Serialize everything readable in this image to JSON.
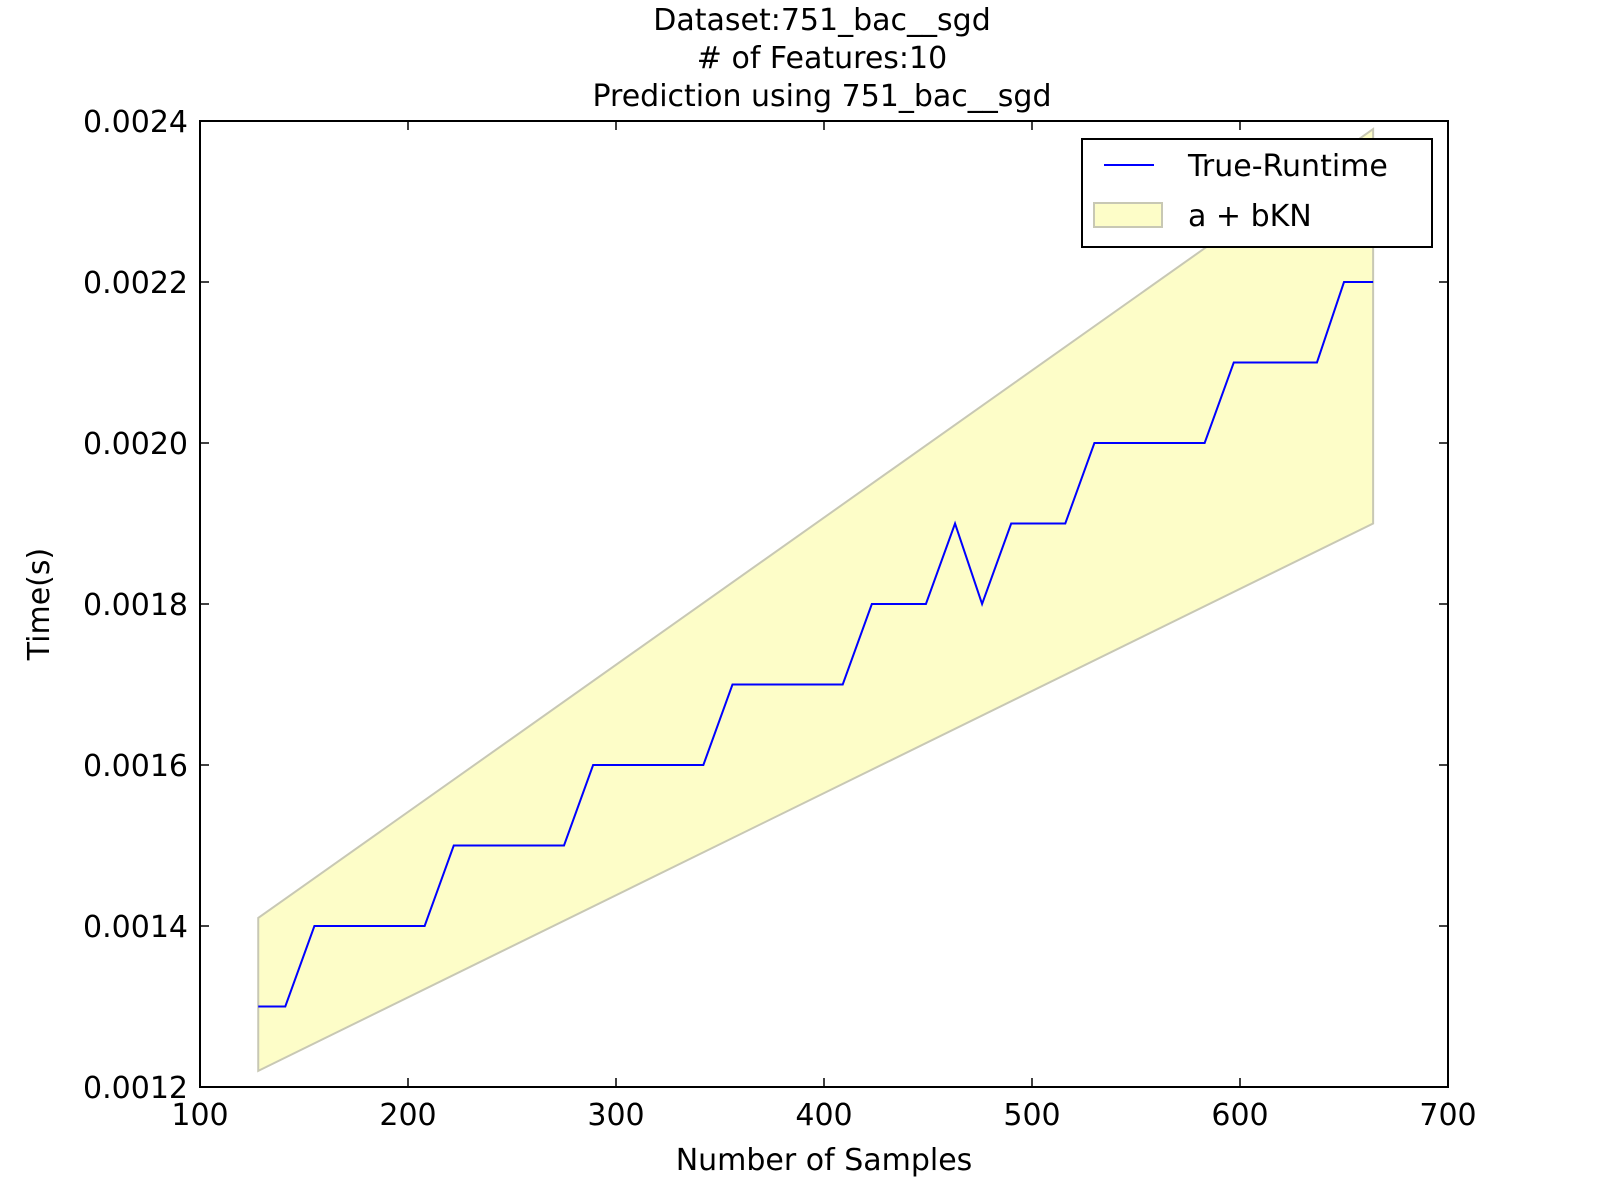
{
  "chart_data": {
    "type": "line",
    "title_lines": [
      "Dataset:751_bac__sgd",
      "# of Features:10",
      "Prediction using 751_bac__sgd"
    ],
    "xlabel": "Number of Samples",
    "ylabel": "Time(s)",
    "xlim": [
      100,
      700
    ],
    "ylim": [
      0.0012,
      0.0024
    ],
    "x_ticks": [
      100,
      200,
      300,
      400,
      500,
      600,
      700
    ],
    "x_tick_labels": [
      "100",
      "200",
      "300",
      "400",
      "500",
      "600",
      "700"
    ],
    "y_ticks": [
      0.0012,
      0.0014,
      0.0016,
      0.0018,
      0.002,
      0.0022,
      0.0024
    ],
    "y_tick_labels": [
      "0.0012",
      "0.0014",
      "0.0016",
      "0.0018",
      "0.0020",
      "0.0022",
      "0.0024"
    ],
    "grid": false,
    "legend_position": "top-right",
    "series": [
      {
        "name": "True-Runtime",
        "kind": "line",
        "color": "#0000ff",
        "x": [
          128,
          141,
          155,
          168,
          181,
          195,
          208,
          222,
          235,
          248,
          262,
          275,
          289,
          302,
          315,
          329,
          342,
          356,
          369,
          382,
          396,
          409,
          423,
          436,
          449,
          463,
          476,
          490,
          503,
          516,
          530,
          543,
          556,
          570,
          583,
          597,
          610,
          623,
          637,
          650,
          664
        ],
        "y": [
          0.0013,
          0.0013,
          0.0014,
          0.0014,
          0.0014,
          0.0014,
          0.0014,
          0.0015,
          0.0015,
          0.0015,
          0.0015,
          0.0015,
          0.0016,
          0.0016,
          0.0016,
          0.0016,
          0.0016,
          0.0017,
          0.0017,
          0.0017,
          0.0017,
          0.0017,
          0.0018,
          0.0018,
          0.0018,
          0.0019,
          0.0018,
          0.0019,
          0.0019,
          0.0019,
          0.002,
          0.002,
          0.002,
          0.002,
          0.002,
          0.0021,
          0.0021,
          0.0021,
          0.0021,
          0.0022,
          0.0022
        ]
      },
      {
        "name": "a + bKN",
        "kind": "band",
        "fill": "#fdfdc8",
        "edge": "#c8c8b4",
        "x": [
          128,
          664
        ],
        "lower": [
          0.00122,
          0.0019
        ],
        "upper": [
          0.00141,
          0.00239
        ]
      }
    ]
  }
}
